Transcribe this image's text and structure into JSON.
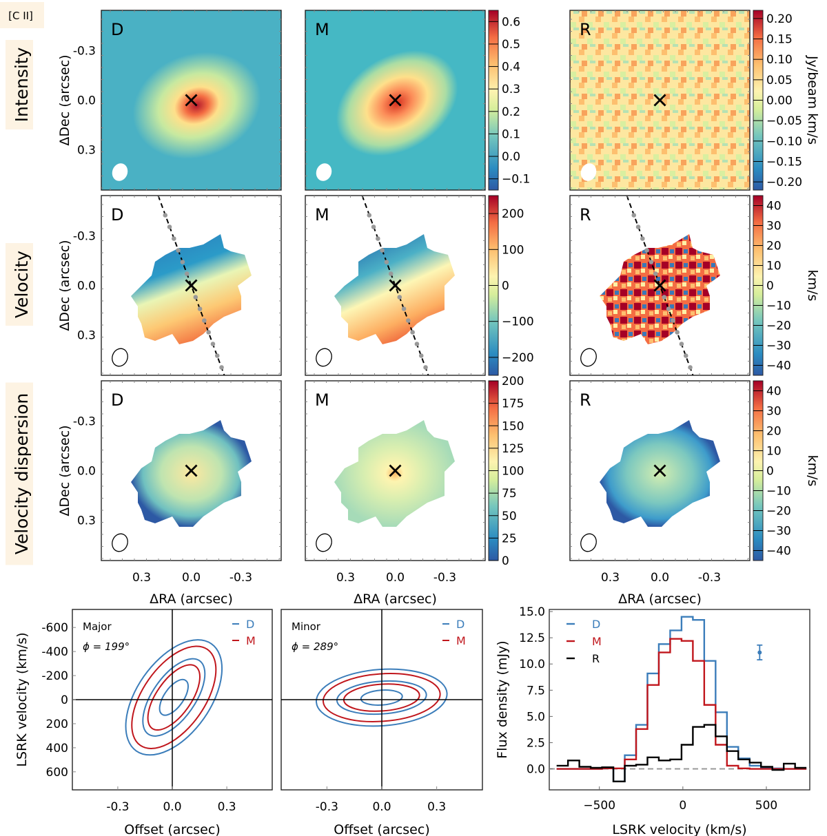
{
  "figure": {
    "line_tag": "[C II]",
    "row_labels": [
      "Intensity",
      "Velocity",
      "Velocity dispersion"
    ],
    "tag_bg": "#fdf3e3"
  },
  "chart_data": [
    {
      "type": "heatmap",
      "grid": "3x3 moment maps",
      "columns": [
        "D",
        "M",
        "R"
      ],
      "rows": [
        {
          "name": "Intensity",
          "colorbars": [
            {
              "for": [
                "D",
                "M"
              ],
              "ticks": [
                "0.6",
                "0.5",
                "0.4",
                "0.3",
                "0.2",
                "0.1",
                "0.0",
                "−0.1"
              ],
              "range": [
                -0.15,
                0.65
              ],
              "label": ""
            },
            {
              "for": [
                "R"
              ],
              "ticks": [
                "0.20",
                "0.15",
                "0.10",
                "0.05",
                "0.00",
                "−0.05",
                "−0.10",
                "−0.15",
                "−0.20"
              ],
              "range": [
                -0.22,
                0.22
              ],
              "label": "Jy/beam km/s"
            }
          ],
          "beam_style": "filled-white"
        },
        {
          "name": "Velocity",
          "colorbars": [
            {
              "for": [
                "D",
                "M"
              ],
              "ticks": [
                "200",
                "100",
                "0",
                "−100",
                "−200"
              ],
              "range": [
                -250,
                250
              ],
              "label": ""
            },
            {
              "for": [
                "R"
              ],
              "ticks": [
                "40",
                "30",
                "20",
                "10",
                "0",
                "−10",
                "−20",
                "−30",
                "−40"
              ],
              "range": [
                -45,
                45
              ],
              "label": "km/s"
            }
          ],
          "kinematic_axis": "dashed line with grey dots",
          "beam_style": "outline"
        },
        {
          "name": "Velocity dispersion",
          "colorbars": [
            {
              "for": [
                "D",
                "M"
              ],
              "ticks": [
                "200",
                "175",
                "150",
                "125",
                "100",
                "75",
                "50",
                "25",
                "0"
              ],
              "range": [
                0,
                200
              ],
              "label": ""
            },
            {
              "for": [
                "R"
              ],
              "ticks": [
                "40",
                "30",
                "20",
                "10",
                "0",
                "−10",
                "−20",
                "−30",
                "−40"
              ],
              "range": [
                -45,
                45
              ],
              "label": "km/s"
            }
          ],
          "beam_style": "outline"
        }
      ],
      "ylabel": "ΔDec (arcsec)",
      "xlabel": "ΔRA (arcsec)",
      "yticks": [
        "0.3",
        "0.0",
        "-0.3"
      ],
      "xticks": [
        "0.3",
        "0.0",
        "-0.3"
      ],
      "extent": [
        0.55,
        -0.55,
        -0.55,
        0.55
      ],
      "center_marker": "×"
    },
    {
      "type": "line",
      "title": "Position-velocity diagram (major)",
      "annotation": "Major",
      "angle_label": "ϕ = 199°",
      "legend": [
        {
          "name": "D",
          "color": "#3b7dba"
        },
        {
          "name": "M",
          "color": "#c0161c"
        }
      ],
      "legend_position": "top-right",
      "xlabel": "Offset (arcsec)",
      "ylabel": "LSRK velocity (km/s)",
      "xticks": [
        "-0.3",
        "0.0",
        "0.3"
      ],
      "yticks": [
        "-600",
        "-400",
        "-200",
        "0",
        "200",
        "400",
        "600"
      ],
      "xlim": [
        -0.55,
        0.55
      ],
      "ylim": [
        750,
        -750
      ]
    },
    {
      "type": "line",
      "title": "Position-velocity diagram (minor)",
      "annotation": "Minor",
      "angle_label": "ϕ = 289°",
      "legend": [
        {
          "name": "D",
          "color": "#3b7dba"
        },
        {
          "name": "M",
          "color": "#c0161c"
        }
      ],
      "legend_position": "top-right",
      "xlabel": "Offset (arcsec)",
      "xticks": [
        "-0.3",
        "0.0",
        "0.3"
      ],
      "xlim": [
        -0.55,
        0.55
      ],
      "ylim": [
        750,
        -750
      ]
    },
    {
      "type": "line",
      "title": "Spectrum",
      "xlabel": "LSRK velocity (km/s)",
      "ylabel": "Flux density (mJy)",
      "xlim": [
        -800,
        760
      ],
      "ylim": [
        -2,
        15.2
      ],
      "xticks": [
        "−500",
        "0",
        "500"
      ],
      "xtick_values": [
        -500,
        0,
        500
      ],
      "yticks": [
        "15.0",
        "12.5",
        "10.0",
        "7.5",
        "5.0",
        "2.5",
        "0.0"
      ],
      "ytick_values": [
        15,
        12.5,
        10,
        7.5,
        5,
        2.5,
        0
      ],
      "legend_position": "top-left",
      "bin_edges": [
        -756,
        -688,
        -620,
        -552,
        -484,
        -416,
        -348,
        -280,
        -212,
        -144,
        -76,
        -8,
        60,
        128,
        196,
        264,
        332,
        400,
        468,
        536,
        604,
        672,
        740
      ],
      "series": [
        {
          "name": "D",
          "color": "#3b7dba",
          "values": [
            0.0,
            0.0,
            0.0,
            0.0,
            0.05,
            -1.2,
            1.3,
            4.2,
            9.1,
            11.9,
            13.2,
            14.5,
            14.2,
            10.3,
            5.4,
            2.1,
            1.0,
            0.3,
            0.1,
            0.05,
            0.0,
            0.0
          ]
        },
        {
          "name": "M",
          "color": "#c0161c",
          "values": [
            0.0,
            0.0,
            0.0,
            0.0,
            0.05,
            0.05,
            0.9,
            3.8,
            8.0,
            11.1,
            12.4,
            12.2,
            10.3,
            6.1,
            2.3,
            0.3,
            0.05,
            0.0,
            0.0,
            0.0,
            0.0,
            0.0
          ]
        },
        {
          "name": "R",
          "color": "#000000",
          "values": [
            0.3,
            0.8,
            0.2,
            0.1,
            0.15,
            -1.2,
            0.3,
            0.4,
            1.1,
            0.8,
            0.9,
            2.3,
            4.0,
            4.2,
            3.1,
            1.7,
            0.9,
            0.6,
            0.2,
            -0.1,
            0.5,
            0.1
          ]
        }
      ],
      "zero_line": "dashed grey",
      "error_bar": {
        "x": 460,
        "y": 11.1,
        "err": 0.7,
        "color": "#3b7dba"
      }
    }
  ]
}
